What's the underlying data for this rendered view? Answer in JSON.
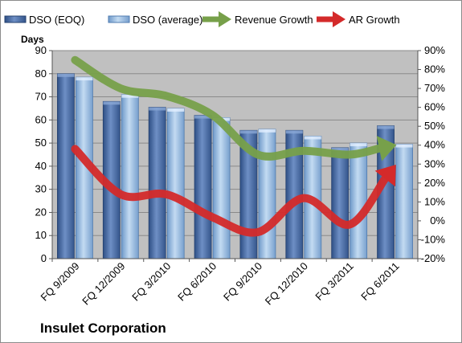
{
  "chart_data": {
    "type": "bar",
    "categories": [
      "FQ 9/2009",
      "FQ 12/2009",
      "FQ 3/2010",
      "FQ 6/2010",
      "FQ 9/2010",
      "FQ 12/2010",
      "FQ 3/2011",
      "FQ 6/2011"
    ],
    "ylabel": "Days",
    "ylim": [
      0,
      90
    ],
    "yticks": [
      "0",
      "10",
      "20",
      "30",
      "40",
      "50",
      "60",
      "70",
      "80",
      "90"
    ],
    "y2lim": [
      -20,
      90
    ],
    "y2ticks": [
      "-20%",
      "-10%",
      "0%",
      "10%",
      "20%",
      "30%",
      "40%",
      "50%",
      "60%",
      "70%",
      "80%",
      "90%"
    ],
    "series": [
      {
        "name": "DSO (EOQ)",
        "kind": "bar",
        "axis": "left",
        "color": "#4f6fa6",
        "values": [
          80,
          68,
          65.5,
          62,
          55.5,
          55.5,
          48,
          57.5
        ]
      },
      {
        "name": "DSO (average)",
        "kind": "bar",
        "axis": "left",
        "color": "#8fb3dd",
        "values": [
          78.5,
          71,
          65,
          61,
          56,
          53,
          50,
          49.5
        ]
      },
      {
        "name": "Revenue Growth",
        "kind": "line",
        "axis": "right",
        "color": "#77a04a",
        "values": [
          85,
          70,
          66,
          56,
          35,
          37,
          35,
          40
        ]
      },
      {
        "name": "AR Growth",
        "kind": "line",
        "axis": "right",
        "color": "#d42a2a",
        "values": [
          38,
          14,
          14,
          2,
          -6,
          12,
          -2,
          29
        ]
      }
    ],
    "grid": true,
    "legend": "top",
    "company": "Insulet Corporation"
  }
}
